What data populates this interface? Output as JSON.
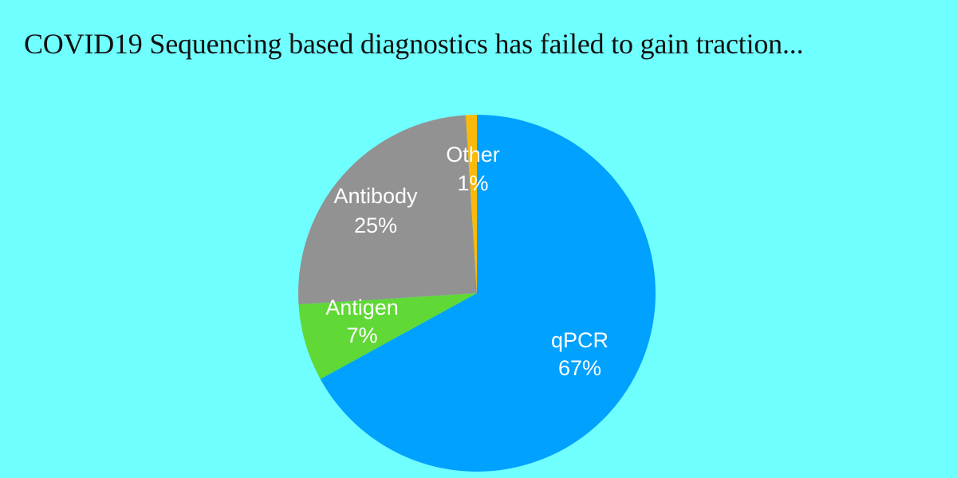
{
  "page": {
    "title": "COVID19 Sequencing based diagnostics has failed to gain traction...",
    "background": "#70ffff"
  },
  "chart_data": {
    "type": "pie",
    "title": "",
    "slices": [
      {
        "label": "qPCR",
        "value": 67,
        "value_label": "67%",
        "color": "#00a1ff"
      },
      {
        "label": "Antigen",
        "value": 7,
        "value_label": "7%",
        "color": "#60d836"
      },
      {
        "label": "Antibody",
        "value": 25,
        "value_label": "25%",
        "color": "#929292"
      },
      {
        "label": "Other",
        "value": 1,
        "value_label": "1%",
        "color": "#fbb909"
      }
    ],
    "legend": "none",
    "labels_inside_slices": true,
    "start_angle_deg": 0,
    "direction": "clockwise"
  }
}
